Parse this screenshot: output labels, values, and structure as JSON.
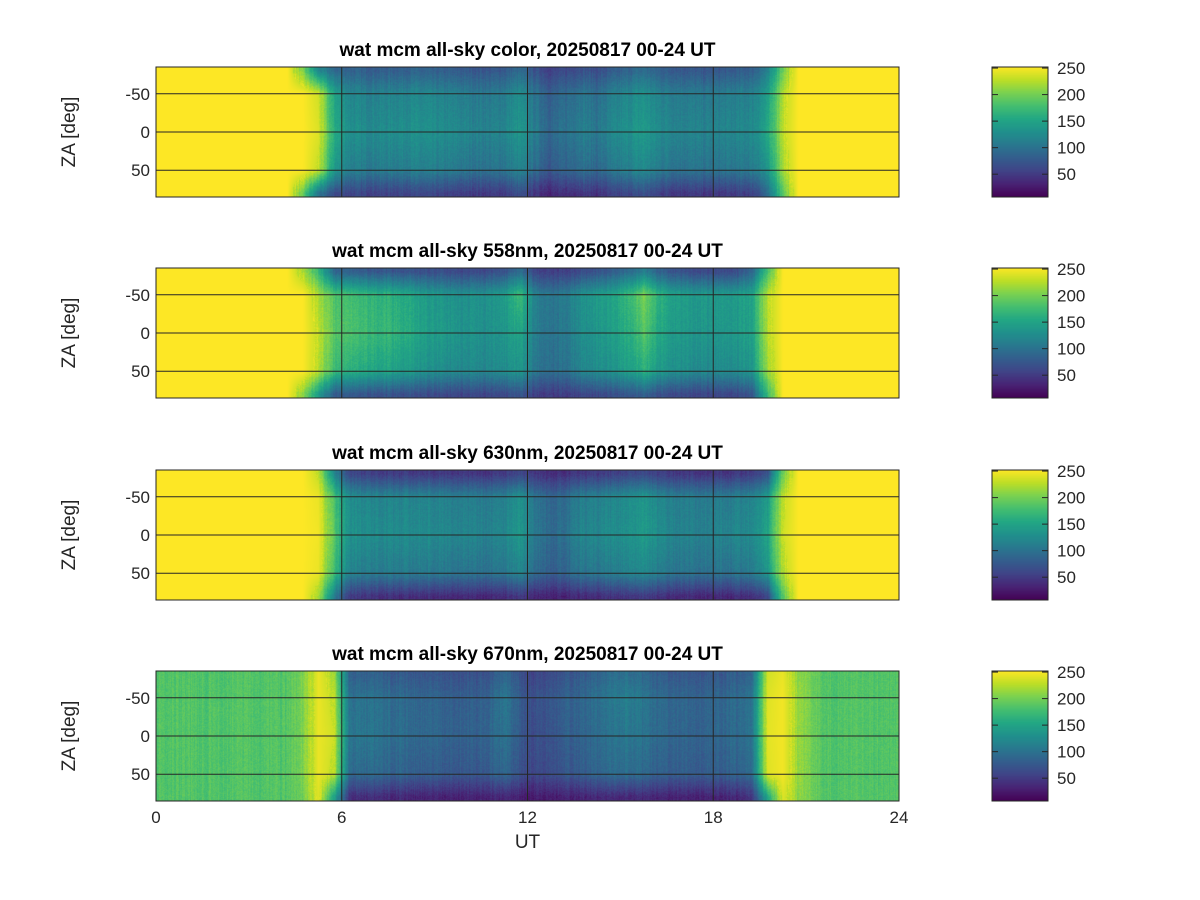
{
  "chart_data": [
    {
      "type": "heatmap",
      "title": "wat mcm all-sky color, 20250817 00-24 UT",
      "ylabel": "ZA [deg]",
      "xlabel": "",
      "xlim": [
        0,
        24
      ],
      "ylim": [
        -85,
        85
      ],
      "y_reversed": true,
      "xticks": [
        0,
        6,
        12,
        18,
        24
      ],
      "xtick_labels_shown": false,
      "yticks": [
        -50,
        0,
        50
      ],
      "grid": true,
      "colormap": "viridis",
      "clim": [
        7,
        252
      ],
      "colorbar_ticks": [
        50,
        100,
        150,
        200,
        250
      ],
      "x_hours": "0.25 to 23.75 step 0.5",
      "za_rows": [
        -80,
        -50,
        0,
        50,
        80
      ],
      "values": [
        [
          252,
          252,
          252,
          252,
          252,
          252,
          252,
          252,
          252,
          200,
          120,
          90,
          85,
          82,
          80,
          82,
          85,
          82,
          80,
          78,
          75,
          72,
          78,
          90,
          70,
          55,
          62,
          72,
          65,
          78,
          85,
          95,
          82,
          78,
          75,
          72,
          75,
          78,
          82,
          110,
          200,
          252,
          252,
          252,
          252,
          252,
          252,
          252
        ],
        [
          252,
          252,
          252,
          252,
          252,
          252,
          252,
          252,
          252,
          252,
          235,
          150,
          120,
          115,
          115,
          118,
          120,
          118,
          115,
          112,
          108,
          105,
          110,
          125,
          100,
          82,
          92,
          105,
          95,
          110,
          120,
          130,
          115,
          110,
          108,
          105,
          108,
          110,
          115,
          140,
          225,
          252,
          252,
          252,
          252,
          252,
          252,
          252
        ],
        [
          252,
          252,
          252,
          252,
          252,
          252,
          252,
          252,
          252,
          252,
          240,
          160,
          130,
          125,
          125,
          128,
          130,
          128,
          125,
          122,
          118,
          115,
          120,
          135,
          110,
          90,
          100,
          115,
          105,
          120,
          130,
          140,
          125,
          120,
          118,
          115,
          118,
          120,
          125,
          150,
          230,
          252,
          252,
          252,
          252,
          252,
          252,
          252
        ],
        [
          252,
          252,
          252,
          252,
          252,
          252,
          252,
          252,
          252,
          252,
          230,
          140,
          112,
          108,
          108,
          110,
          112,
          110,
          108,
          105,
          100,
          98,
          102,
          115,
          92,
          75,
          85,
          98,
          88,
          102,
          112,
          122,
          108,
          102,
          100,
          98,
          100,
          102,
          108,
          130,
          220,
          252,
          252,
          252,
          252,
          252,
          252,
          252
        ],
        [
          252,
          252,
          252,
          252,
          252,
          252,
          252,
          252,
          252,
          190,
          100,
          65,
          60,
          58,
          55,
          58,
          60,
          58,
          55,
          52,
          50,
          48,
          52,
          65,
          45,
          35,
          40,
          48,
          42,
          52,
          60,
          68,
          55,
          50,
          48,
          46,
          48,
          50,
          55,
          90,
          190,
          252,
          252,
          252,
          252,
          252,
          252,
          252
        ]
      ]
    },
    {
      "type": "heatmap",
      "title": "wat mcm all-sky 558nm, 20250817 00-24 UT",
      "ylabel": "ZA [deg]",
      "xlabel": "",
      "xlim": [
        0,
        24
      ],
      "ylim": [
        -85,
        85
      ],
      "y_reversed": true,
      "xticks": [
        0,
        6,
        12,
        18,
        24
      ],
      "xtick_labels_shown": false,
      "yticks": [
        -50,
        0,
        50
      ],
      "grid": true,
      "colormap": "viridis",
      "clim": [
        7,
        252
      ],
      "colorbar_ticks": [
        50,
        100,
        150,
        200,
        250
      ],
      "x_hours": "0.25 to 23.75 step 0.5",
      "za_rows": [
        -80,
        -50,
        0,
        50,
        80
      ],
      "values": [
        [
          252,
          252,
          252,
          252,
          252,
          252,
          252,
          252,
          252,
          220,
          170,
          90,
          80,
          78,
          75,
          72,
          70,
          68,
          65,
          62,
          60,
          62,
          70,
          95,
          60,
          50,
          55,
          65,
          70,
          80,
          95,
          110,
          85,
          70,
          65,
          62,
          62,
          65,
          90,
          180,
          252,
          252,
          252,
          252,
          252,
          252,
          252,
          252
        ],
        [
          252,
          252,
          252,
          252,
          252,
          252,
          252,
          252,
          252,
          252,
          220,
          185,
          175,
          170,
          165,
          160,
          150,
          140,
          135,
          130,
          128,
          130,
          140,
          175,
          115,
          100,
          110,
          130,
          140,
          150,
          170,
          200,
          165,
          145,
          140,
          138,
          138,
          140,
          150,
          225,
          252,
          252,
          252,
          252,
          252,
          252,
          252,
          252
        ],
        [
          252,
          252,
          252,
          252,
          252,
          252,
          252,
          252,
          252,
          252,
          230,
          190,
          180,
          175,
          170,
          165,
          155,
          145,
          140,
          135,
          130,
          128,
          135,
          150,
          112,
          98,
          108,
          128,
          135,
          145,
          160,
          185,
          155,
          140,
          138,
          135,
          135,
          138,
          148,
          225,
          252,
          252,
          252,
          252,
          252,
          252,
          252,
          252
        ],
        [
          252,
          252,
          252,
          252,
          252,
          252,
          252,
          252,
          252,
          252,
          225,
          175,
          160,
          155,
          150,
          145,
          138,
          130,
          125,
          122,
          120,
          118,
          125,
          135,
          105,
          92,
          100,
          118,
          125,
          132,
          145,
          160,
          140,
          128,
          125,
          122,
          122,
          125,
          135,
          215,
          252,
          252,
          252,
          252,
          252,
          252,
          252,
          252
        ],
        [
          252,
          252,
          252,
          252,
          252,
          252,
          252,
          252,
          252,
          210,
          140,
          80,
          75,
          72,
          70,
          68,
          66,
          64,
          62,
          60,
          58,
          58,
          62,
          72,
          55,
          48,
          52,
          60,
          62,
          68,
          75,
          82,
          68,
          62,
          60,
          58,
          58,
          60,
          75,
          170,
          252,
          252,
          252,
          252,
          252,
          252,
          252,
          252
        ]
      ]
    },
    {
      "type": "heatmap",
      "title": "wat mcm all-sky 630nm, 20250817 00-24 UT",
      "ylabel": "ZA [deg]",
      "xlabel": "",
      "xlim": [
        0,
        24
      ],
      "ylim": [
        -85,
        85
      ],
      "y_reversed": true,
      "xticks": [
        0,
        6,
        12,
        18,
        24
      ],
      "xtick_labels_shown": false,
      "yticks": [
        -50,
        0,
        50
      ],
      "grid": true,
      "colormap": "viridis",
      "clim": [
        7,
        252
      ],
      "colorbar_ticks": [
        50,
        100,
        150,
        200,
        250
      ],
      "x_hours": "0.25 to 23.75 step 0.5",
      "za_rows": [
        -80,
        -50,
        0,
        50,
        80
      ],
      "values": [
        [
          252,
          252,
          252,
          252,
          252,
          252,
          252,
          252,
          252,
          252,
          230,
          120,
          60,
          55,
          52,
          50,
          50,
          50,
          48,
          48,
          46,
          45,
          48,
          60,
          44,
          38,
          42,
          46,
          48,
          52,
          58,
          62,
          52,
          48,
          46,
          45,
          46,
          48,
          52,
          70,
          200,
          252,
          252,
          252,
          252,
          252,
          252,
          252
        ],
        [
          252,
          252,
          252,
          252,
          252,
          252,
          252,
          252,
          252,
          252,
          245,
          180,
          125,
          120,
          118,
          118,
          118,
          118,
          115,
          112,
          110,
          108,
          112,
          130,
          100,
          85,
          95,
          110,
          112,
          118,
          125,
          135,
          118,
          112,
          110,
          108,
          110,
          112,
          118,
          140,
          230,
          252,
          252,
          252,
          252,
          252,
          252,
          252
        ],
        [
          252,
          252,
          252,
          252,
          252,
          252,
          252,
          252,
          252,
          252,
          248,
          190,
          130,
          128,
          125,
          125,
          125,
          125,
          122,
          120,
          118,
          115,
          120,
          138,
          105,
          90,
          100,
          118,
          120,
          125,
          130,
          140,
          125,
          118,
          115,
          115,
          118,
          120,
          125,
          150,
          235,
          252,
          252,
          252,
          252,
          252,
          252,
          252
        ],
        [
          252,
          252,
          252,
          252,
          252,
          252,
          252,
          252,
          252,
          252,
          245,
          175,
          115,
          110,
          108,
          108,
          108,
          108,
          105,
          102,
          100,
          98,
          102,
          118,
          92,
          78,
          88,
          100,
          102,
          108,
          115,
          122,
          108,
          102,
          100,
          98,
          100,
          102,
          108,
          135,
          225,
          252,
          252,
          252,
          252,
          252,
          252,
          252
        ],
        [
          252,
          252,
          252,
          252,
          252,
          252,
          252,
          252,
          252,
          252,
          220,
          110,
          50,
          45,
          42,
          40,
          40,
          40,
          38,
          38,
          36,
          35,
          38,
          48,
          34,
          30,
          32,
          36,
          38,
          42,
          45,
          50,
          42,
          38,
          36,
          35,
          36,
          38,
          42,
          60,
          190,
          252,
          252,
          252,
          252,
          252,
          252,
          252
        ]
      ]
    },
    {
      "type": "heatmap",
      "title": "wat mcm all-sky 670nm, 20250817 00-24 UT",
      "ylabel": "ZA [deg]",
      "xlabel": "UT",
      "xlim": [
        0,
        24
      ],
      "ylim": [
        -85,
        85
      ],
      "y_reversed": true,
      "xticks": [
        0,
        6,
        12,
        18,
        24
      ],
      "xtick_labels_shown": true,
      "yticks": [
        -50,
        0,
        50
      ],
      "grid": true,
      "colormap": "viridis",
      "clim": [
        7,
        252
      ],
      "colorbar_ticks": [
        50,
        100,
        150,
        200,
        250
      ],
      "x_hours": "0.25 to 23.75 step 0.5",
      "za_rows": [
        -80,
        -50,
        0,
        50,
        80
      ],
      "values": [
        [
          185,
          185,
          185,
          185,
          185,
          185,
          185,
          185,
          185,
          205,
          245,
          220,
          85,
          82,
          80,
          78,
          76,
          74,
          72,
          70,
          68,
          72,
          90,
          70,
          58,
          65,
          72,
          78,
          85,
          95,
          100,
          88,
          80,
          76,
          74,
          74,
          76,
          80,
          88,
          235,
          245,
          210,
          195,
          185,
          185,
          185,
          185,
          185
        ],
        [
          185,
          185,
          185,
          185,
          185,
          185,
          185,
          185,
          185,
          205,
          245,
          230,
          100,
          98,
          95,
          92,
          90,
          88,
          85,
          82,
          80,
          85,
          105,
          80,
          68,
          75,
          82,
          88,
          95,
          105,
          115,
          100,
          92,
          88,
          85,
          85,
          88,
          92,
          100,
          240,
          248,
          215,
          195,
          185,
          185,
          185,
          185,
          185
        ],
        [
          185,
          185,
          185,
          185,
          185,
          185,
          185,
          185,
          185,
          205,
          245,
          235,
          105,
          102,
          98,
          95,
          92,
          90,
          88,
          85,
          82,
          88,
          100,
          78,
          65,
          72,
          80,
          85,
          92,
          100,
          108,
          98,
          92,
          88,
          85,
          85,
          88,
          92,
          100,
          242,
          248,
          215,
          195,
          185,
          185,
          185,
          185,
          185
        ],
        [
          185,
          185,
          185,
          185,
          185,
          185,
          185,
          185,
          185,
          205,
          245,
          230,
          92,
          90,
          88,
          85,
          82,
          80,
          78,
          75,
          72,
          78,
          90,
          70,
          60,
          66,
          72,
          78,
          85,
          92,
          98,
          88,
          82,
          80,
          78,
          78,
          80,
          84,
          92,
          240,
          248,
          215,
          195,
          185,
          185,
          185,
          185,
          185
        ],
        [
          185,
          185,
          185,
          185,
          185,
          185,
          185,
          185,
          185,
          200,
          240,
          150,
          40,
          38,
          36,
          35,
          34,
          33,
          32,
          31,
          30,
          32,
          35,
          30,
          26,
          28,
          30,
          32,
          34,
          36,
          38,
          34,
          32,
          31,
          30,
          30,
          32,
          35,
          45,
          150,
          240,
          210,
          195,
          185,
          185,
          185,
          185,
          185
        ]
      ]
    }
  ]
}
